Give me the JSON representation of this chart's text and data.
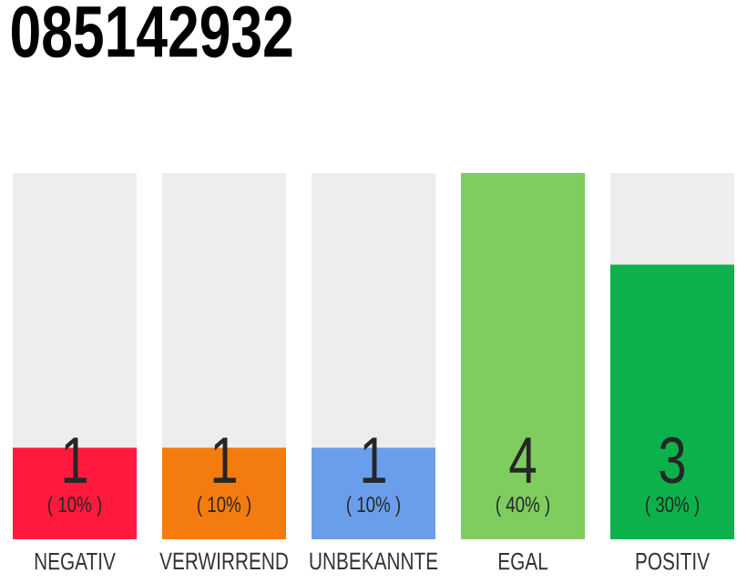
{
  "chart_data": {
    "type": "bar",
    "title": "085142932",
    "categories": [
      "NEGATIV",
      "VERWIRREND",
      "UNBEKANNTE",
      "EGAL",
      "POSITIV"
    ],
    "values": [
      1,
      1,
      1,
      4,
      3
    ],
    "colors": [
      "#ff1a3d",
      "#f47c0f",
      "#6a9eea",
      "#7fcc5f",
      "#0cb14b"
    ],
    "ylim": [
      0,
      4
    ],
    "data_labels": true,
    "annotations": [
      "( 10% )",
      "( 10% )",
      "( 10% )",
      "( 40% )",
      "( 30% )"
    ]
  }
}
